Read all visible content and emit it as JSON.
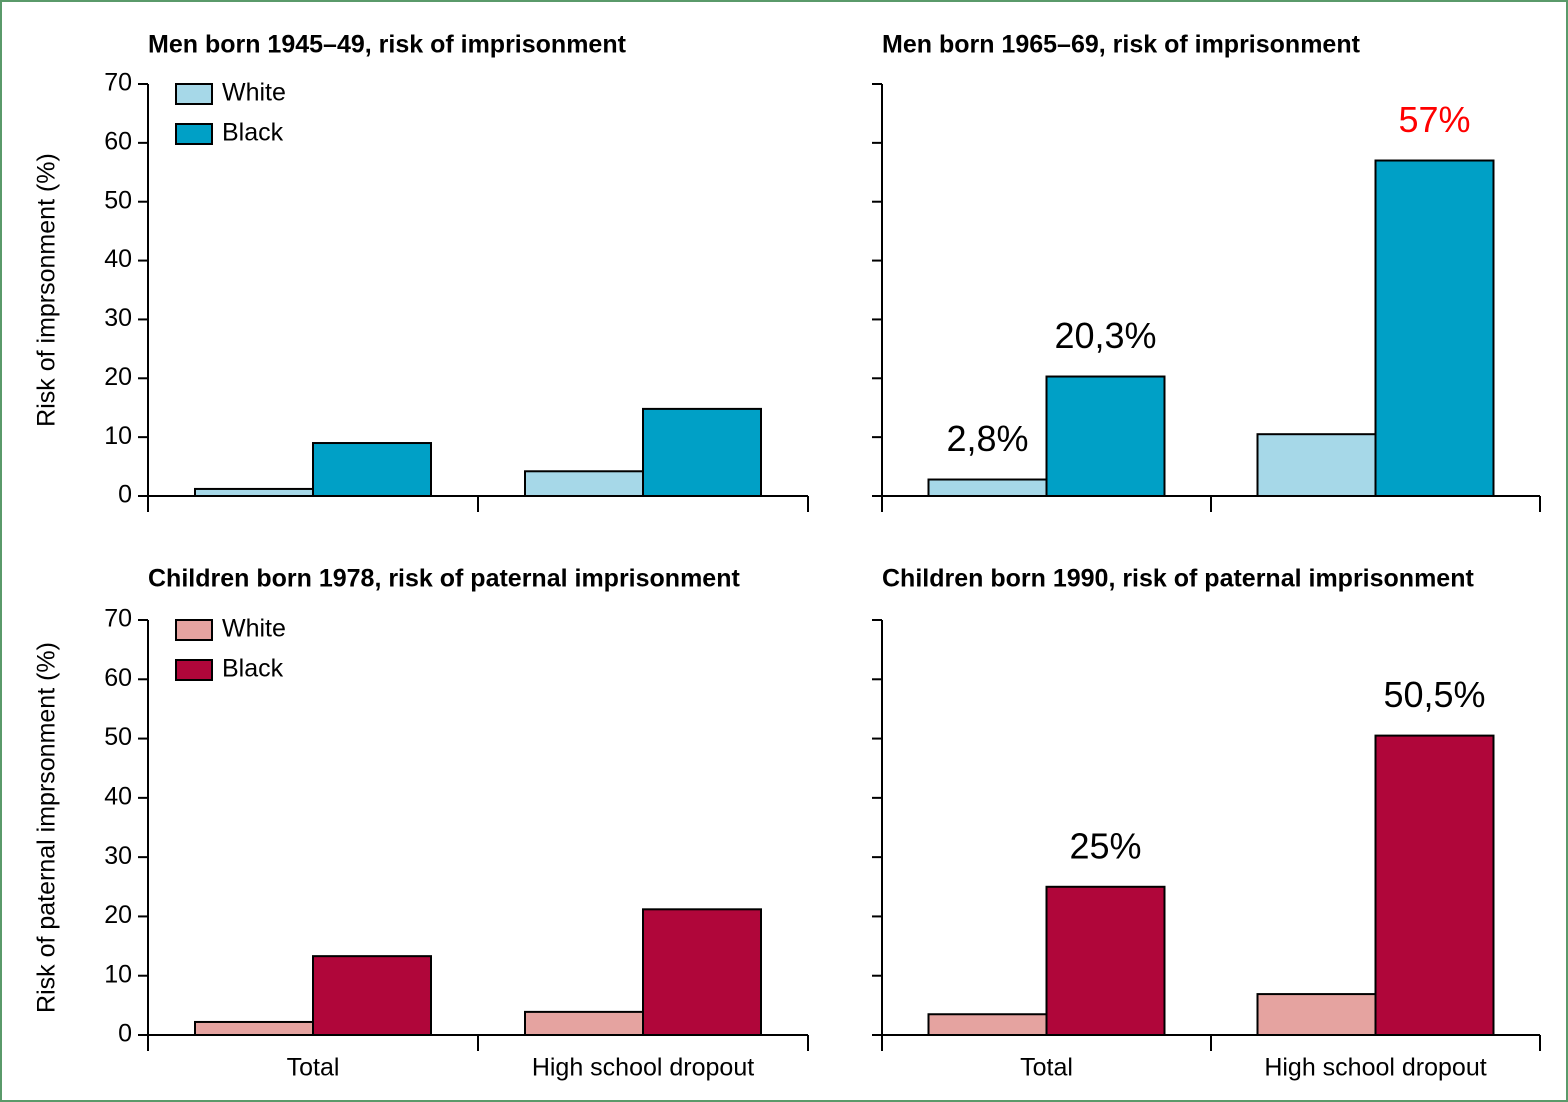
{
  "chart_data": [
    {
      "type": "bar",
      "title": "Men born 1945–49, risk of imprisonment",
      "ylabel": "Risk of imprsonment (%)",
      "categories": [
        null,
        null
      ],
      "ylim": [
        0,
        70
      ],
      "yticks": [
        0,
        10,
        20,
        30,
        40,
        50,
        60,
        70
      ],
      "ytick_labels": true,
      "legend": "upper left",
      "series": [
        {
          "name": "White",
          "color": "#a6d8e8",
          "values": [
            1.2,
            4.2
          ]
        },
        {
          "name": "Black",
          "color": "#00a0c6",
          "values": [
            9.0,
            14.8
          ]
        }
      ]
    },
    {
      "type": "bar",
      "title": "Men born 1965–69, risk of imprisonment",
      "categories": [
        null,
        null
      ],
      "ylim": [
        0,
        70
      ],
      "yticks": [
        0,
        10,
        20,
        30,
        40,
        50,
        60,
        70
      ],
      "ytick_labels": false,
      "series": [
        {
          "color": "#a6d8e8",
          "values": [
            2.8,
            10.5
          ],
          "value_labels": [
            "2,8%",
            null
          ],
          "value_label_colors": [
            "#000000",
            null
          ]
        },
        {
          "color": "#00a0c6",
          "values": [
            20.3,
            57
          ],
          "value_labels": [
            "20,3%",
            "57%"
          ],
          "value_label_colors": [
            "#000000",
            "#ff0000"
          ]
        }
      ]
    },
    {
      "type": "bar",
      "title": "Children born 1978, risk of paternal imprisonment",
      "ylabel": "Risk of paternal imprsonment (%)",
      "categories": [
        "Total",
        "High school dropout"
      ],
      "ylim": [
        0,
        70
      ],
      "yticks": [
        0,
        10,
        20,
        30,
        40,
        50,
        60,
        70
      ],
      "ytick_labels": true,
      "legend": "upper left",
      "series": [
        {
          "name": "White",
          "color": "#e5a3a0",
          "values": [
            2.2,
            3.9
          ]
        },
        {
          "name": "Black",
          "color": "#b0063a",
          "values": [
            13.3,
            21.2
          ]
        }
      ]
    },
    {
      "type": "bar",
      "title": "Children born 1990, risk of paternal imprisonment",
      "categories": [
        "Total",
        "High school dropout"
      ],
      "ylim": [
        0,
        70
      ],
      "yticks": [
        0,
        10,
        20,
        30,
        40,
        50,
        60,
        70
      ],
      "ytick_labels": false,
      "series": [
        {
          "color": "#e5a3a0",
          "values": [
            3.5,
            6.9
          ]
        },
        {
          "color": "#b0063a",
          "values": [
            25,
            50.5
          ],
          "value_labels": [
            "25%",
            "50,5%"
          ],
          "value_label_colors": [
            "#000000",
            "#000000"
          ]
        }
      ]
    }
  ]
}
